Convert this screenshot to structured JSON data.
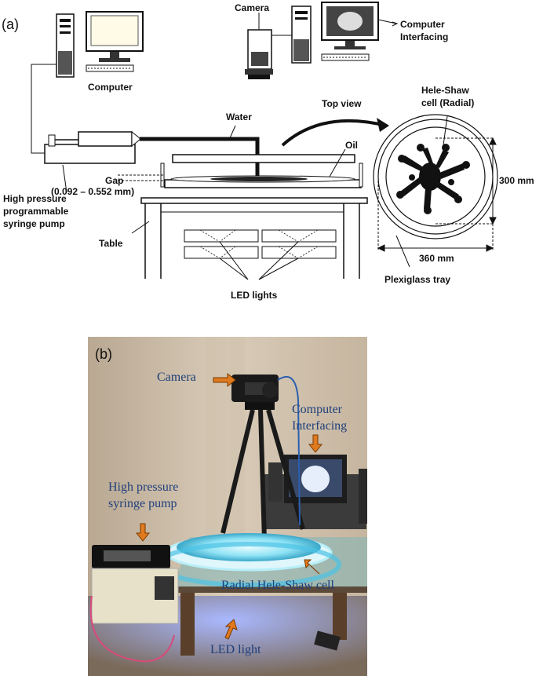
{
  "panel_a": {
    "tag": "(a)",
    "computer": "Computer",
    "camera": "Camera",
    "computer_interfacing": [
      "Computer",
      "Interfacing"
    ],
    "top_view": "Top view",
    "hele_shaw": [
      "Hele-Shaw",
      "cell (Radial)"
    ],
    "water": "Water",
    "oil": "Oil",
    "gap": [
      "Gap",
      "(0.092 – 0.552 mm)"
    ],
    "pump": [
      "High pressure",
      "programmable",
      "syringe pump"
    ],
    "table": "Table",
    "led_lights": "LED lights",
    "dim_300": "300 mm",
    "dim_360": "360 mm",
    "tray": "Plexiglass tray"
  },
  "panel_b": {
    "tag": "(b)",
    "camera": "Camera",
    "computer_interfacing": [
      "Computer",
      "Interfacing"
    ],
    "pump": [
      "High pressure",
      "syringe pump"
    ],
    "cell": "Radial Hele-Shaw cell",
    "led": "LED light"
  },
  "colors": {
    "line": "#111111",
    "photo_text": "#1f3f7a",
    "arrow_orange": "#e07a1f",
    "glow": "#8fe3f5"
  }
}
